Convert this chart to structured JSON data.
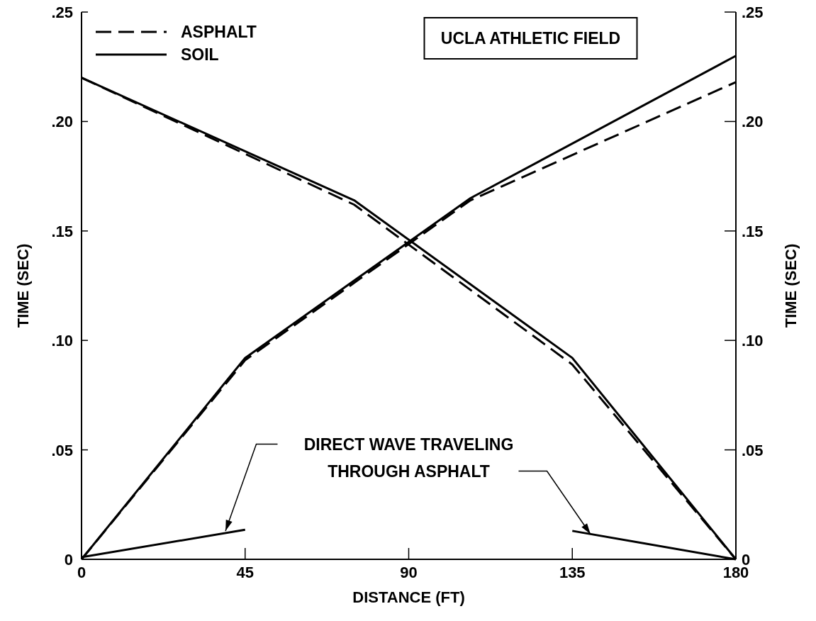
{
  "chart_data": {
    "type": "line",
    "title": "UCLA ATHLETIC FIELD",
    "xlabel": "DISTANCE (FT)",
    "ylabel": "TIME (SEC)",
    "y2label": "TIME (SEC)",
    "annotations": [
      {
        "text": "DIRECT WAVE TRAVELING\nTHROUGH ASPHALT",
        "x": 140,
        "y": 0.0115
      }
    ],
    "xlim": [
      0,
      180
    ],
    "xticks": [
      0,
      45,
      90,
      135,
      180
    ],
    "ylim": [
      0,
      0.25
    ],
    "yticks": [
      0,
      {
        "value": 0.05,
        "label": ".05"
      },
      {
        "value": 0.1,
        "label": ".10"
      },
      {
        "value": 0.15,
        "label": ".15"
      },
      {
        "value": 0.2,
        "label": ".20"
      },
      {
        "value": 0.25,
        "label": ".25"
      }
    ],
    "y2lim": [
      0,
      0.25
    ],
    "y2ticks": [
      0,
      {
        "value": 0.05,
        "label": ".05"
      },
      {
        "value": 0.1,
        "label": ".10"
      },
      {
        "value": 0.15,
        "label": ".15"
      },
      {
        "value": 0.2,
        "label": ".20"
      },
      {
        "value": 0.25,
        "label": ".25"
      }
    ],
    "legend": "top left",
    "grid": false,
    "series": [
      {
        "name": "ASPHALT",
        "color": "#000000",
        "line_style": "dashed",
        "x": [
          0,
          75,
          135,
          180
        ],
        "values": [
          0.22,
          0.162,
          0.089,
          0
        ]
      },
      {
        "name": "SOIL",
        "color": "#000000",
        "line_style": "solid",
        "x": [
          0,
          75,
          135,
          180
        ],
        "values": [
          0.22,
          0.164,
          0.092,
          0
        ]
      },
      {
        "color": "#000000",
        "line_style": "dashed",
        "x": [
          0,
          45,
          107,
          180
        ],
        "values": [
          0,
          0.091,
          0.164,
          0.218
        ]
      },
      {
        "color": "#000000",
        "line_style": "solid",
        "x": [
          0,
          45,
          107,
          180
        ],
        "values": [
          0,
          0.092,
          0.165,
          0.23
        ]
      },
      {
        "color": "#000000",
        "line_style": "solid",
        "x": [
          0,
          45
        ],
        "values": [
          0.001,
          0.0135
        ]
      },
      {
        "color": "#000000",
        "line_style": "solid",
        "x": [
          135,
          180
        ],
        "values": [
          0.013,
          0
        ]
      }
    ]
  }
}
